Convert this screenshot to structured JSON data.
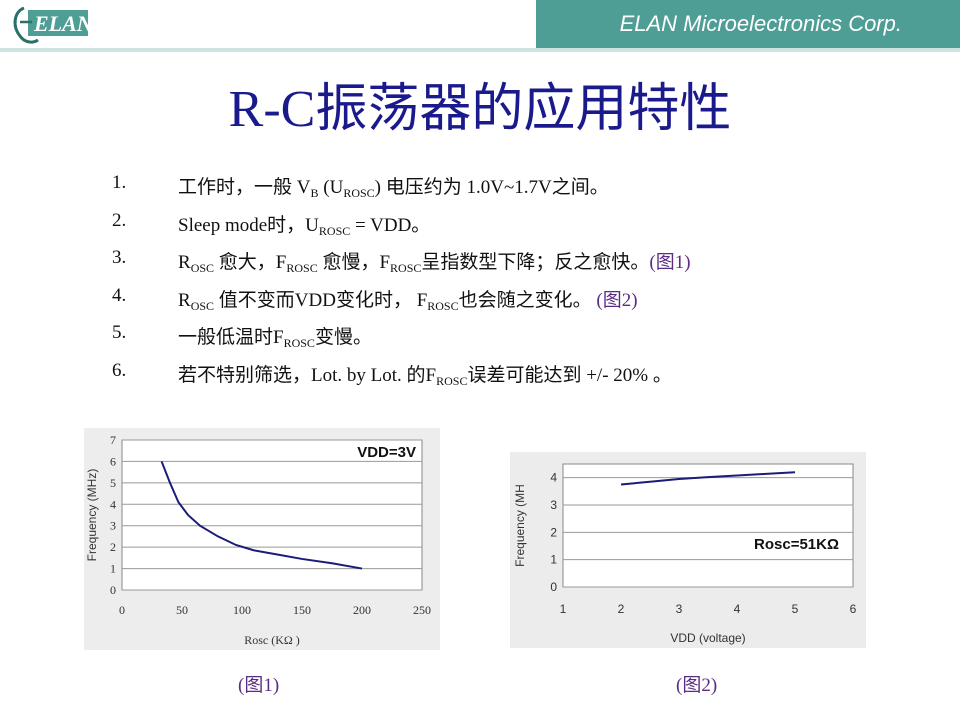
{
  "header": {
    "company": "ELAN Microelectronics Corp.",
    "logo_text": "ELAN"
  },
  "title": "R-C振荡器的应用特性",
  "items": [
    {
      "num": "1.",
      "parts": [
        {
          "t": "工作时，一般 V"
        },
        {
          "s": "B"
        },
        {
          "t": " (U"
        },
        {
          "s": "ROSC"
        },
        {
          "t": ") 电压约为 1.0V~1.7V之间。"
        }
      ]
    },
    {
      "num": "2.",
      "parts": [
        {
          "t": "Sleep mode时，U"
        },
        {
          "s": "ROSC"
        },
        {
          "t": " = VDD。"
        }
      ]
    },
    {
      "num": "3.",
      "parts": [
        {
          "t": "R"
        },
        {
          "s": "OSC"
        },
        {
          "t": " 愈大，F"
        },
        {
          "s": "ROSC"
        },
        {
          "t": " 愈慢，F"
        },
        {
          "s": "ROSC"
        },
        {
          "t": "呈指数型下降；反之愈快。"
        },
        {
          "r": "(图1)"
        }
      ]
    },
    {
      "num": "4.",
      "parts": [
        {
          "t": "R"
        },
        {
          "s": "OSC"
        },
        {
          "t": " 值不变而VDD变化时， F"
        },
        {
          "s": "ROSC"
        },
        {
          "t": "也会随之变化。 "
        },
        {
          "r": "(图2)"
        }
      ]
    },
    {
      "num": "5.",
      "parts": [
        {
          "t": "一般低温时F"
        },
        {
          "s": "ROSC"
        },
        {
          "t": "变慢。"
        }
      ]
    },
    {
      "num": "6.",
      "parts": [
        {
          "t": "若不特别筛选，Lot. by Lot. 的F"
        },
        {
          "s": "ROSC"
        },
        {
          "t": "误差可能达到 +/- 20% 。"
        }
      ]
    }
  ],
  "chart_data": [
    {
      "type": "line",
      "label": "VDD=3V",
      "xlabel": "Rosc (KΩ )",
      "ylabel": "Frequency (MHz)",
      "xlim": [
        0,
        250
      ],
      "ylim": [
        0,
        7
      ],
      "xticks": [
        0,
        50,
        100,
        150,
        200,
        250
      ],
      "yticks": [
        0,
        1,
        2,
        3,
        4,
        5,
        6,
        7
      ],
      "series": [
        {
          "x": [
            33,
            40,
            47,
            55,
            65,
            80,
            95,
            110,
            130,
            150,
            175,
            200
          ],
          "y": [
            6.0,
            5.0,
            4.1,
            3.5,
            3.0,
            2.5,
            2.1,
            1.85,
            1.65,
            1.45,
            1.25,
            1.0
          ]
        }
      ]
    },
    {
      "type": "line",
      "label": "Rosc=51KΩ",
      "xlabel": "VDD (voltage)",
      "ylabel": "Frequency (MH",
      "xlim": [
        1,
        6
      ],
      "ylim": [
        0,
        4.5
      ],
      "xticks": [
        1,
        2,
        3,
        4,
        5,
        6
      ],
      "yticks": [
        0,
        1,
        2,
        3,
        4
      ],
      "series": [
        {
          "x": [
            2,
            2.5,
            3,
            3.5,
            4,
            4.5,
            5
          ],
          "y": [
            3.75,
            3.85,
            3.95,
            4.02,
            4.08,
            4.14,
            4.2
          ]
        }
      ]
    }
  ],
  "captions": [
    "(图1)",
    "(图2)"
  ]
}
